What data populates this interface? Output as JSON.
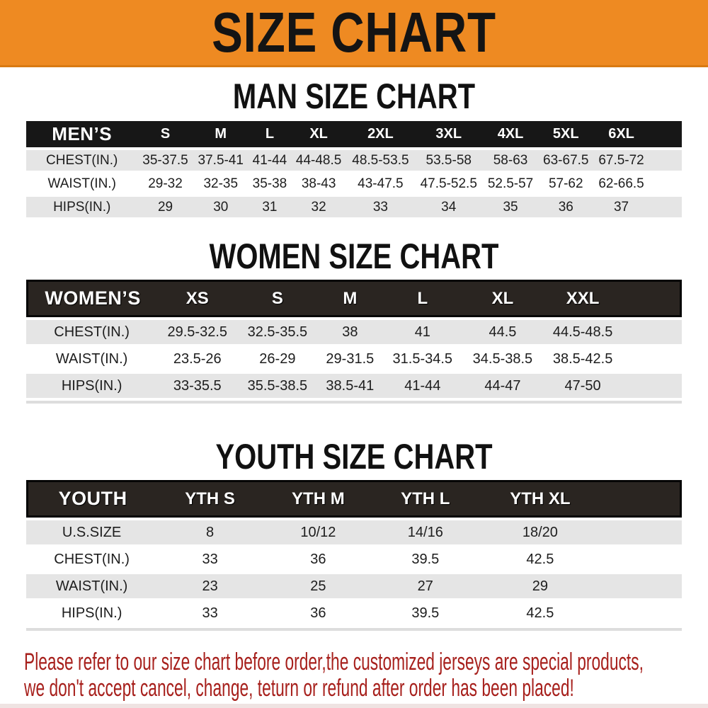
{
  "banner": {
    "title": "SIZE CHART",
    "bg_color": "#EE8A22",
    "text_color": "#141414"
  },
  "sections": [
    {
      "title": "MAN SIZE CHART",
      "header_label": "MEN’S",
      "columns": [
        "S",
        "M",
        "L",
        "XL",
        "2XL",
        "3XL",
        "4XL",
        "5XL",
        "6XL"
      ],
      "rows": [
        {
          "label": "CHEST(IN.)",
          "values": [
            "35-37.5",
            "37.5-41",
            "41-44",
            "44-48.5",
            "48.5-53.5",
            "53.5-58",
            "58-63",
            "63-67.5",
            "67.5-72"
          ]
        },
        {
          "label": "WAIST(IN.)",
          "values": [
            "29-32",
            "32-35",
            "35-38",
            "38-43",
            "43-47.5",
            "47.5-52.5",
            "52.5-57",
            "57-62",
            "62-66.5"
          ]
        },
        {
          "label": "HIPS(IN.)",
          "values": [
            "29",
            "30",
            "31",
            "32",
            "33",
            "34",
            "35",
            "36",
            "37"
          ]
        }
      ]
    },
    {
      "title": "WOMEN SIZE CHART",
      "header_label": "WOMEN’S",
      "columns": [
        "XS",
        "S",
        "M",
        "L",
        "XL",
        "XXL"
      ],
      "rows": [
        {
          "label": "CHEST(IN.)",
          "values": [
            "29.5-32.5",
            "32.5-35.5",
            "38",
            "41",
            "44.5",
            "44.5-48.5"
          ]
        },
        {
          "label": "WAIST(IN.)",
          "values": [
            "23.5-26",
            "26-29",
            "29-31.5",
            "31.5-34.5",
            "34.5-38.5",
            "38.5-42.5"
          ]
        },
        {
          "label": "HIPS(IN.)",
          "values": [
            "33-35.5",
            "35.5-38.5",
            "38.5-41",
            "41-44",
            "44-47",
            "47-50"
          ]
        }
      ]
    },
    {
      "title": "YOUTH SIZE CHART",
      "header_label": "YOUTH",
      "columns": [
        "YTH S",
        "YTH M",
        "YTH L",
        "YTH XL"
      ],
      "rows": [
        {
          "label": "U.S.SIZE",
          "values": [
            "8",
            "10/12",
            "14/16",
            "18/20"
          ]
        },
        {
          "label": "CHEST(IN.)",
          "values": [
            "33",
            "36",
            "39.5",
            "42.5"
          ]
        },
        {
          "label": "WAIST(IN.)",
          "values": [
            "23",
            "25",
            "27",
            "29"
          ]
        },
        {
          "label": "HIPS(IN.)",
          "values": [
            "33",
            "36",
            "39.5",
            "42.5"
          ]
        }
      ]
    }
  ],
  "disclaimer": {
    "line1": "Please refer to our size chart before order,the customized jerseys are special products,",
    "line2": "we don't accept cancel, change, teturn or refund after order has been placed!",
    "color": "#A7201C"
  }
}
